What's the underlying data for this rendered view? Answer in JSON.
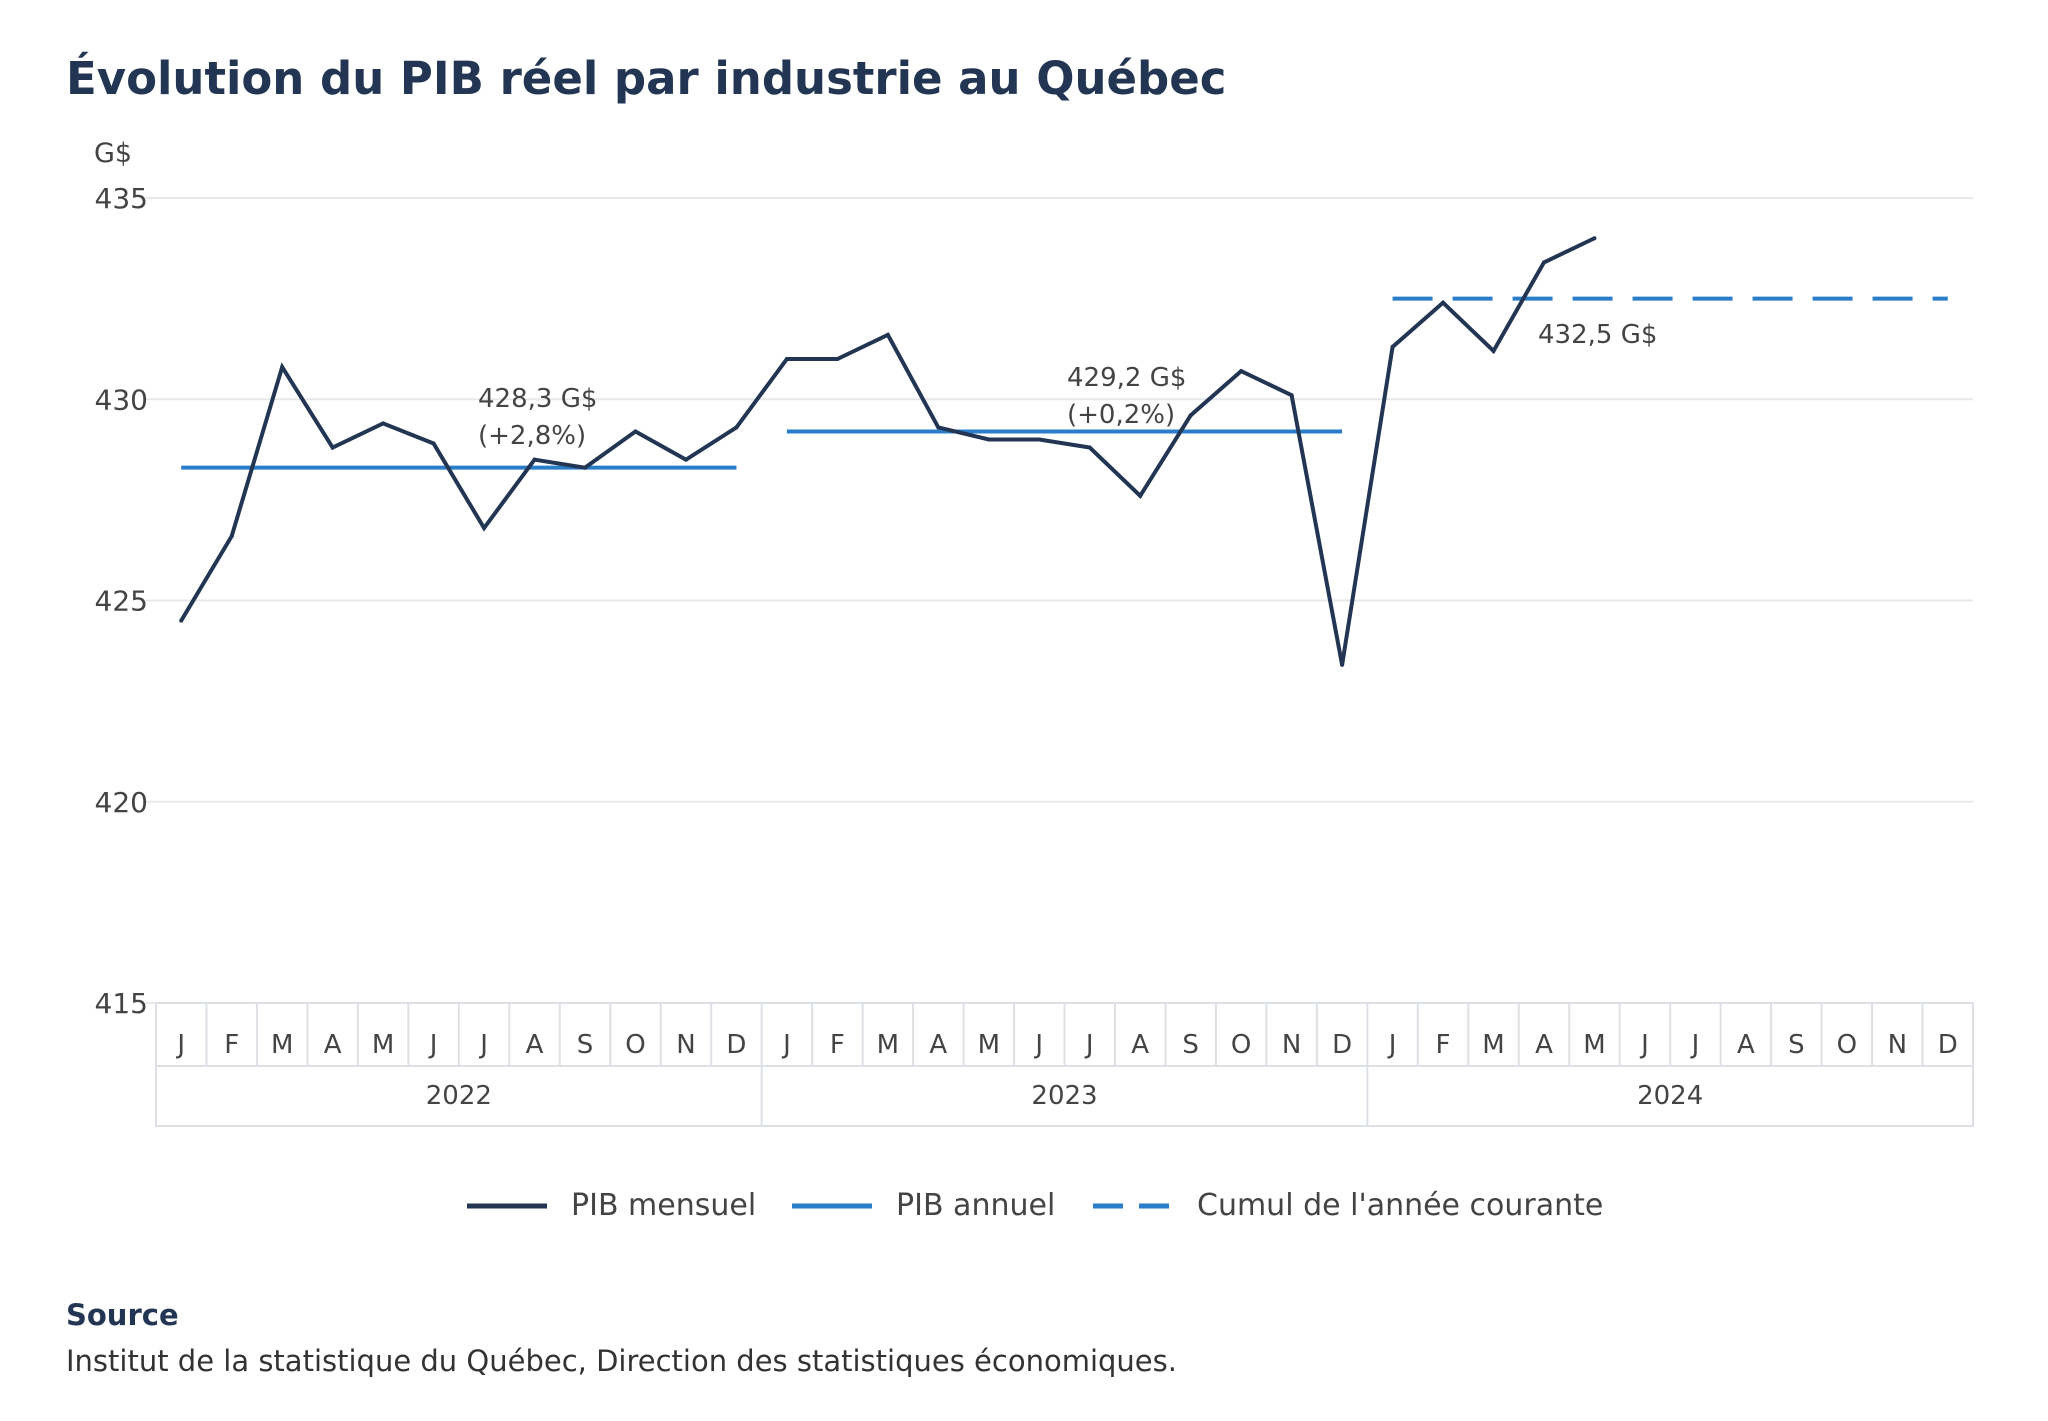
{
  "title": "Évolution du PIB réel par industrie au Québec",
  "source": {
    "heading": "Source",
    "text": "Institut de la statistique du Québec, Direction des statistiques économiques."
  },
  "colors": {
    "monthly": "#223654",
    "annual": "#2a7dc9",
    "grid": "#e6e9ec",
    "text": "#444444"
  },
  "chart_data": {
    "type": "line",
    "ylabel": "G$",
    "ylim": [
      415,
      435
    ],
    "yticks": [
      "415",
      "420",
      "425",
      "430",
      "435"
    ],
    "grid": true,
    "legend_position": "bottom",
    "months": [
      "J",
      "F",
      "M",
      "A",
      "M",
      "J",
      "J",
      "A",
      "S",
      "O",
      "N",
      "D"
    ],
    "years": [
      "2022",
      "2023",
      "2024"
    ],
    "series": [
      {
        "name": "PIB mensuel",
        "style": "solid-dark",
        "values": [
          424.5,
          426.6,
          430.8,
          428.8,
          429.4,
          428.9,
          426.8,
          428.5,
          428.3,
          429.2,
          428.5,
          429.3,
          431.0,
          431.0,
          431.6,
          429.3,
          429.0,
          429.0,
          428.8,
          427.6,
          429.6,
          430.7,
          430.1,
          423.4,
          431.3,
          432.4,
          431.2,
          433.4,
          434.0
        ]
      },
      {
        "name": "PIB annuel",
        "style": "solid-blue",
        "segments": [
          {
            "year": "2022",
            "value": 428.3
          },
          {
            "year": "2023",
            "value": 429.2
          }
        ]
      },
      {
        "name": "Cumul de l'année courante",
        "style": "dashed-blue",
        "segments": [
          {
            "year": "2024",
            "value": 432.5
          }
        ]
      }
    ],
    "annotations": [
      {
        "year": "2022",
        "lines": [
          "428,3 G$",
          "(+2,8%)"
        ]
      },
      {
        "year": "2023",
        "lines": [
          "429,2 G$",
          "(+0,2%)"
        ]
      },
      {
        "year": "2024",
        "lines": [
          "432,5 G$"
        ]
      }
    ]
  }
}
